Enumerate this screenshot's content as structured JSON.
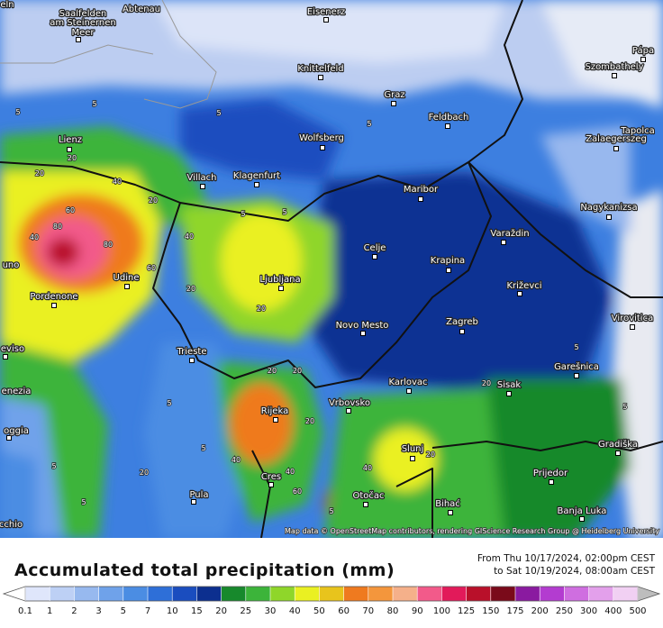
{
  "map": {
    "cities": [
      "Saalfelden",
      "am Steinernen",
      "Meer",
      "Abtenau",
      "Eisenerz",
      "eln",
      "Knittelfeld",
      "Pápa",
      "Szombathely",
      "Graz",
      "Feldbach",
      "Tapolca",
      "Lienz",
      "Wolfsberg",
      "Zalaegerszeg",
      "Villach",
      "Klagenfurt",
      "Maribor",
      "Nagykanizsa",
      "Celje",
      "Varaždin",
      "Krapina",
      "uno",
      "Križevci",
      "Pordenone",
      "Udine",
      "Ljubljana",
      "Novo Mesto",
      "Zagreb",
      "Virovitica",
      "eviso",
      "Trieste",
      "Karlovac",
      "Sisak",
      "Garešnica",
      "enezia",
      "Vrbovsko",
      "Rijeka",
      "oggia",
      "Slunj",
      "Gradiška",
      "Prijedor",
      "Cres",
      "Pula",
      "Otočac",
      "Bihać",
      "Banja Luka",
      "cchio"
    ],
    "contour_labels": [
      5,
      5,
      5,
      5,
      20,
      20,
      40,
      60,
      80,
      80,
      40,
      20,
      40,
      60,
      20,
      20,
      20,
      20,
      5,
      5,
      5,
      5,
      20,
      40,
      40,
      60,
      20,
      5,
      5,
      20,
      5,
      5,
      20,
      40,
      5
    ],
    "attribution": "Map data © OpenStreetMap contributors, rendering GIScience Research Group @ Heidelberg University"
  },
  "footer": {
    "title": "Accumulated total precipitation (mm)",
    "date_from": "From Thu 10/17/2024, 02:00pm CEST",
    "date_to": "to Sat 10/19/2024, 08:00am CEST"
  },
  "legend": {
    "ticks": [
      0.1,
      1,
      2,
      3,
      5,
      7,
      10,
      15,
      20,
      25,
      30,
      40,
      50,
      60,
      70,
      80,
      90,
      100,
      125,
      150,
      175,
      200,
      250,
      300,
      400,
      500
    ],
    "colors": [
      "#dfe6fb",
      "#bdd0f5",
      "#97b9ef",
      "#6fa2ea",
      "#4b8de3",
      "#2e6fd8",
      "#1a4dbf",
      "#0c2f8f",
      "#17892c",
      "#3cb43a",
      "#8fd62a",
      "#eaf022",
      "#e8c41c",
      "#ef7a1f",
      "#f4963c",
      "#f5b08a",
      "#f25a8a",
      "#e21a5a",
      "#b9102a",
      "#7a0a1a",
      "#8a1aa0",
      "#b33cd0",
      "#cf6ee0",
      "#e3a0eb",
      "#f1d0f3"
    ],
    "under_color": "#ffffff",
    "over_color": "#bdbdbd"
  }
}
